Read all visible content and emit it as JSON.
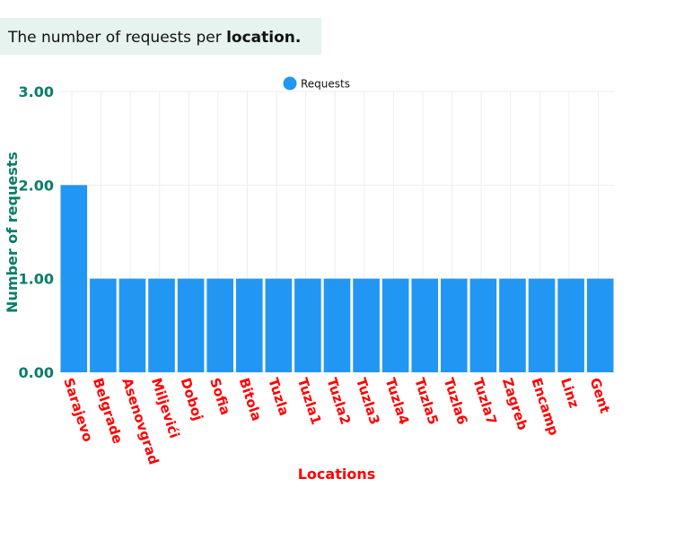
{
  "title": {
    "prefix": "The number of  requests per ",
    "emphasis": "location."
  },
  "colors": {
    "bar": "#2196f3",
    "axis_text": "#0a7d6a",
    "x_tick_text": "#ff0000",
    "grid": "#eeeeee",
    "title_bg": "#e6f3ef"
  },
  "chart_data": {
    "type": "bar",
    "categories": [
      "Sarajevo",
      "Belgrade",
      "Asenovgrad",
      "Miljevići",
      "Doboj",
      "Sofia",
      "Bitola",
      "Tuzla",
      "Tuzla1",
      "Tuzla2",
      "Tuzla3",
      "Tuzla4",
      "Tuzla5",
      "Tuzla6",
      "Tuzla7",
      "Zagreb",
      "Encamp",
      "Linz",
      "Gent"
    ],
    "series": [
      {
        "name": "Requests",
        "values": [
          2,
          1,
          1,
          1,
          1,
          1,
          1,
          1,
          1,
          1,
          1,
          1,
          1,
          1,
          1,
          1,
          1,
          1,
          1
        ]
      }
    ],
    "yticks": [
      "0.00",
      "1.00",
      "2.00",
      "3.00"
    ],
    "ylim": [
      0,
      3
    ],
    "xlabel": "Locations",
    "ylabel": "Number of requests",
    "legend_position": "top-center",
    "grid": true
  }
}
